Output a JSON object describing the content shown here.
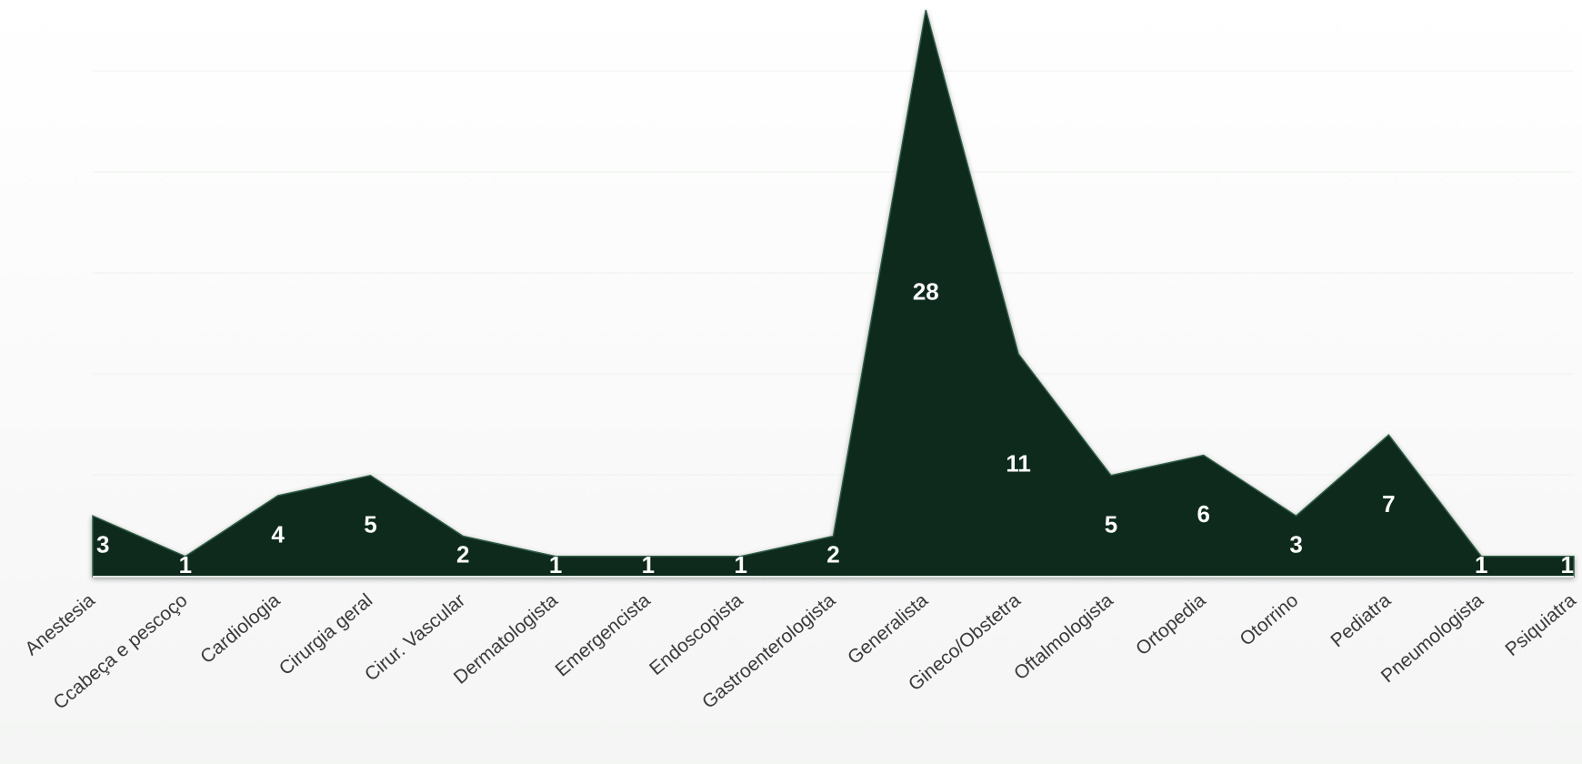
{
  "chart_data": {
    "type": "area",
    "categories": [
      "Anestesia",
      "Ccabeça e pescoço",
      "Cardiologia",
      "Cirurgia geral",
      "Cirur. Vascular",
      "Dermatologista",
      "Emergencista",
      "Endoscopista",
      "Gastroenterologista",
      "Generalista",
      "Gineco/Obstetra",
      "Oftalmologista",
      "Ortopedia",
      "Otorrino",
      "Pediatra",
      "Pneumologista",
      "Psiquiatra"
    ],
    "values": [
      3,
      1,
      4,
      5,
      2,
      1,
      1,
      1,
      2,
      28,
      11,
      5,
      6,
      3,
      7,
      1,
      1
    ],
    "color": "#0b2a1c",
    "ylim": [
      0,
      28
    ]
  }
}
